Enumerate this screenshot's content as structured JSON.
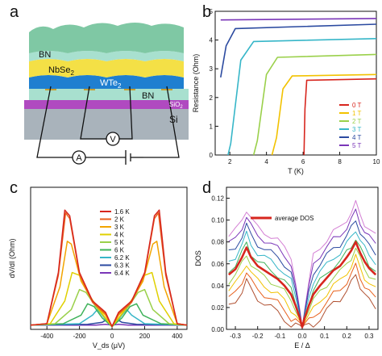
{
  "panel_a": {
    "label": "a",
    "layers": {
      "bn_top": "BN",
      "nbse2": "NbSe",
      "nbse2_sub": "2",
      "wte2": "WTe",
      "wte2_sub": "2",
      "bn_bottom": "BN",
      "sio2": "SiO",
      "sio2_sub": "2",
      "si": "Si"
    },
    "meters": {
      "voltmeter": "V",
      "ammeter": "A"
    },
    "colors": {
      "bn": "#7fc8a4",
      "bn_light": "#a8e0cf",
      "nbse2": "#f4e046",
      "wte2": "#1f7fd0",
      "sio2": "#b04ac0",
      "si": "#a9b3bb",
      "contact": "#c8a030"
    }
  },
  "chart_data": [
    {
      "panel": "b",
      "type": "line",
      "title": "",
      "xlabel": "T (K)",
      "ylabel": "Resistance (Ohm)",
      "xlim": [
        1.2,
        10
      ],
      "ylim": [
        0,
        5
      ],
      "xticks": [
        "2",
        "4",
        "6",
        "8",
        "10"
      ],
      "yticks": [
        "0",
        "1",
        "2",
        "3",
        "4",
        "5"
      ],
      "legend_position": "bottom-right",
      "series": [
        {
          "name": "0 T",
          "color": "#d7261e",
          "x": [
            6.05,
            6.1,
            6.2,
            10
          ],
          "y": [
            0.0,
            1.6,
            2.6,
            2.65
          ]
        },
        {
          "name": "1 T",
          "color": "#f2c200",
          "x": [
            4.3,
            4.55,
            4.9,
            5.4,
            10
          ],
          "y": [
            0.0,
            0.6,
            2.3,
            2.75,
            2.8
          ]
        },
        {
          "name": "2 T",
          "color": "#9ad04a",
          "x": [
            3.3,
            3.5,
            4.0,
            4.6,
            10
          ],
          "y": [
            0.0,
            0.5,
            2.8,
            3.4,
            3.5
          ]
        },
        {
          "name": "3 T",
          "color": "#36b6c8",
          "x": [
            1.9,
            2.05,
            2.6,
            3.3,
            10
          ],
          "y": [
            0.0,
            0.4,
            3.3,
            3.95,
            4.05
          ]
        },
        {
          "name": "4 T",
          "color": "#2b4aa0",
          "x": [
            1.5,
            1.8,
            2.3,
            10
          ],
          "y": [
            2.7,
            3.8,
            4.4,
            4.55
          ]
        },
        {
          "name": "5 T",
          "color": "#7a36b8",
          "x": [
            1.5,
            10
          ],
          "y": [
            4.7,
            4.75
          ]
        }
      ]
    },
    {
      "panel": "c",
      "type": "line",
      "title": "",
      "xlabel": "V_ds (μV)",
      "ylabel": "dV/dI (Ohm)",
      "xlim": [
        -500,
        460
      ],
      "ylim": [
        0,
        100
      ],
      "xticks": [
        "-400",
        "-200",
        "0",
        "200",
        "400"
      ],
      "legend_position": "top-center",
      "series": [
        {
          "name": "1.6 K",
          "color": "#d7261e",
          "x": [
            -500,
            -400,
            -330,
            -290,
            -260,
            -200,
            -120,
            -40,
            0,
            40,
            120,
            200,
            260,
            290,
            330,
            400,
            460
          ],
          "y": [
            3,
            4,
            40,
            84,
            80,
            40,
            20,
            12,
            2,
            12,
            20,
            40,
            80,
            84,
            40,
            4,
            3
          ]
        },
        {
          "name": "2 K",
          "color": "#e8601c",
          "x": [
            -500,
            -400,
            -330,
            -285,
            -260,
            -200,
            -120,
            -40,
            0,
            40,
            120,
            200,
            260,
            285,
            330,
            400,
            460
          ],
          "y": [
            3,
            4,
            38,
            82,
            78,
            39,
            19,
            11,
            2,
            11,
            19,
            39,
            78,
            82,
            38,
            4,
            3
          ]
        },
        {
          "name": "3 K",
          "color": "#f2a400",
          "x": [
            -500,
            -400,
            -320,
            -275,
            -250,
            -190,
            -110,
            -40,
            0,
            40,
            110,
            190,
            250,
            275,
            320,
            400,
            460
          ],
          "y": [
            3,
            4,
            30,
            62,
            60,
            34,
            18,
            10,
            2,
            10,
            18,
            34,
            60,
            62,
            30,
            4,
            3
          ]
        },
        {
          "name": "4 K",
          "color": "#e0d000",
          "x": [
            -500,
            -380,
            -290,
            -245,
            -200,
            -140,
            -80,
            0,
            80,
            140,
            200,
            245,
            290,
            380,
            460
          ],
          "y": [
            3,
            4,
            20,
            40,
            38,
            24,
            14,
            2,
            14,
            24,
            38,
            40,
            20,
            4,
            3
          ]
        },
        {
          "name": "5 K",
          "color": "#9ad04a",
          "x": [
            -500,
            -350,
            -250,
            -200,
            -160,
            -100,
            -50,
            0,
            50,
            100,
            160,
            200,
            250,
            350,
            460
          ],
          "y": [
            3,
            4,
            14,
            28,
            26,
            16,
            9,
            2,
            9,
            16,
            26,
            28,
            14,
            4,
            3
          ]
        },
        {
          "name": "6 K",
          "color": "#3fb25a",
          "x": [
            -500,
            -300,
            -190,
            -150,
            -110,
            -60,
            0,
            60,
            110,
            150,
            190,
            300,
            460
          ],
          "y": [
            3,
            4,
            10,
            18,
            16,
            8,
            2,
            8,
            16,
            18,
            10,
            4,
            3
          ]
        },
        {
          "name": "6.2 K",
          "color": "#36b6c8",
          "x": [
            -500,
            -200,
            -120,
            -90,
            -60,
            -20,
            0,
            20,
            60,
            90,
            120,
            200,
            460
          ],
          "y": [
            3,
            4,
            10,
            14,
            10,
            4,
            2,
            4,
            10,
            14,
            10,
            4,
            3
          ]
        },
        {
          "name": "6.3 K",
          "color": "#2b4aa0",
          "x": [
            -500,
            -150,
            -60,
            -30,
            0,
            30,
            60,
            150,
            460
          ],
          "y": [
            3,
            3.5,
            5,
            7,
            2,
            7,
            5,
            3.5,
            3
          ]
        },
        {
          "name": "6.4 K",
          "color": "#7a36b8",
          "x": [
            -500,
            -100,
            -40,
            0,
            40,
            100,
            460
          ],
          "y": [
            3,
            3,
            3.5,
            3,
            3.5,
            3,
            3
          ]
        }
      ]
    },
    {
      "panel": "d",
      "type": "line",
      "title": "",
      "xlabel": "E / Δ",
      "ylabel": "DOS",
      "xlim": [
        -0.34,
        0.34
      ],
      "ylim": [
        0,
        0.13
      ],
      "xticks": [
        "-0.3",
        "-0.2",
        "-0.1",
        "0.0",
        "0.1",
        "0.2",
        "0.3"
      ],
      "yticks": [
        "0.00",
        "0.02",
        "0.04",
        "0.06",
        "0.08",
        "0.10",
        "0.12"
      ],
      "legend_position": "top-center",
      "legend": [
        "average DOS"
      ],
      "x": [
        -0.33,
        -0.3,
        -0.27,
        -0.25,
        -0.23,
        -0.2,
        -0.17,
        -0.14,
        -0.11,
        -0.08,
        -0.05,
        -0.03,
        -0.01,
        0.0,
        0.01,
        0.03,
        0.05,
        0.08,
        0.11,
        0.14,
        0.17,
        0.2,
        0.22,
        0.24,
        0.26,
        0.28,
        0.3,
        0.33
      ],
      "average_dos": {
        "name": "average DOS",
        "color": "#d7261e",
        "y": [
          0.05,
          0.055,
          0.066,
          0.075,
          0.066,
          0.058,
          0.054,
          0.05,
          0.046,
          0.04,
          0.032,
          0.022,
          0.01,
          0.002,
          0.01,
          0.022,
          0.032,
          0.04,
          0.047,
          0.054,
          0.058,
          0.066,
          0.072,
          0.08,
          0.07,
          0.062,
          0.056,
          0.05
        ]
      },
      "series": [
        {
          "name": "",
          "color": "#d480d4",
          "offset": 0.035
        },
        {
          "name": "",
          "color": "#7a36b8",
          "offset": 0.028
        },
        {
          "name": "",
          "color": "#2b4aa0",
          "offset": 0.02
        },
        {
          "name": "",
          "color": "#36b6c8",
          "offset": 0.012
        },
        {
          "name": "",
          "color": "#3fb25a",
          "offset": 0.004
        },
        {
          "name": "",
          "color": "#9ad04a",
          "offset": -0.006
        },
        {
          "name": "",
          "color": "#f2c200",
          "offset": -0.014
        },
        {
          "name": "",
          "color": "#e8601c",
          "offset": -0.022
        },
        {
          "name": "",
          "color": "#b05030",
          "offset": -0.03
        }
      ]
    }
  ]
}
